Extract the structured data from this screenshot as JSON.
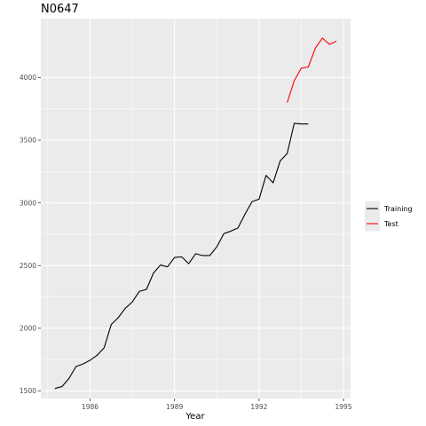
{
  "chart_data": {
    "type": "line",
    "title": "N0647",
    "xlabel": "Year",
    "ylabel": "",
    "xlim": [
      1984.25,
      1995.25
    ],
    "ylim": [
      1440,
      4470
    ],
    "x_ticks": [
      {
        "value": 1986,
        "label": "1986"
      },
      {
        "value": 1989,
        "label": "1989"
      },
      {
        "value": 1992,
        "label": "1992"
      },
      {
        "value": 1995,
        "label": "1995"
      }
    ],
    "y_ticks": [
      {
        "value": 1500,
        "label": "1500"
      },
      {
        "value": 2000,
        "label": "2000"
      },
      {
        "value": 2500,
        "label": "2500"
      },
      {
        "value": 3000,
        "label": "3000"
      },
      {
        "value": 3500,
        "label": "3500"
      },
      {
        "value": 4000,
        "label": "4000"
      }
    ],
    "grid": true,
    "legend_position": "right",
    "series": [
      {
        "name": "Training",
        "color": "#000000",
        "x": [
          1984.75,
          1985.0,
          1985.25,
          1985.5,
          1985.75,
          1986.0,
          1986.25,
          1986.5,
          1986.75,
          1987.0,
          1987.25,
          1987.5,
          1987.75,
          1988.0,
          1988.25,
          1988.5,
          1988.75,
          1989.0,
          1989.25,
          1989.5,
          1989.75,
          1990.0,
          1990.25,
          1990.5,
          1990.75,
          1991.0,
          1991.25,
          1991.5,
          1991.75,
          1992.0,
          1992.25,
          1992.5,
          1992.75,
          1993.0,
          1993.25,
          1993.5,
          1993.75
        ],
        "values": [
          1520,
          1535,
          1600,
          1695,
          1715,
          1745,
          1785,
          1845,
          2030,
          2085,
          2160,
          2210,
          2295,
          2310,
          2440,
          2505,
          2490,
          2565,
          2570,
          2515,
          2595,
          2580,
          2580,
          2650,
          2755,
          2775,
          2800,
          2910,
          3010,
          3030,
          3220,
          3160,
          3335,
          3395,
          3635,
          3630,
          3630
        ]
      },
      {
        "name": "Test",
        "color": "#ff0000",
        "x": [
          1993.0,
          1993.25,
          1993.5,
          1993.75,
          1994.0,
          1994.25,
          1994.5,
          1994.75
        ],
        "values": [
          3800,
          3975,
          4075,
          4085,
          4235,
          4315,
          4265,
          4290
        ]
      }
    ]
  }
}
